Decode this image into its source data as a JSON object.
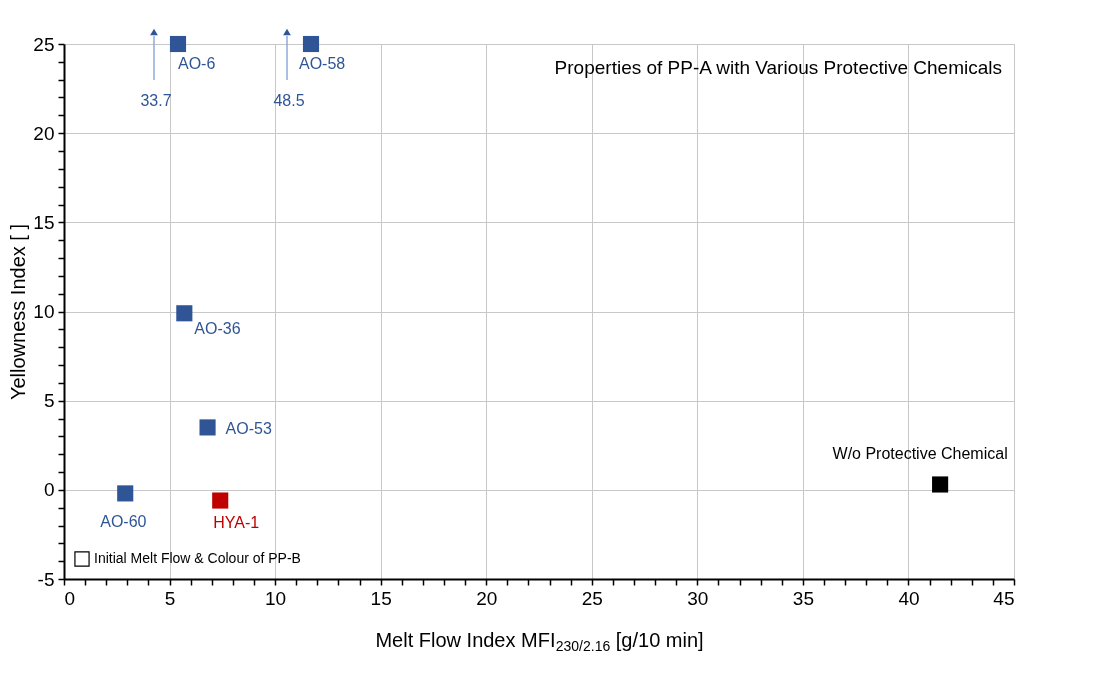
{
  "chart_data": {
    "type": "scatter",
    "title": "Properties of PP-A with Various Protective Chemicals",
    "xlabel": "Melt Flow Index MFI$_{230/2.16}$ [g/10 min]",
    "ylabel": "Yellowness Index [  ]",
    "series": [
      {
        "color": "#2f5597",
        "x": [
          5.4,
          11.7,
          5.7,
          6.8,
          2.9
        ],
        "values": [
          25,
          25,
          9.9,
          3.5,
          -0.2
        ],
        "value_labels": [
          "AO-6",
          "AO-58",
          "AO-36",
          "AO-53",
          "AO-60"
        ]
      },
      {
        "color": "#c00000",
        "x": [
          7.4
        ],
        "values": [
          -0.6
        ],
        "value_labels": [
          "HYA-1"
        ]
      },
      {
        "color": "#000000",
        "x": [
          41.5
        ],
        "values": [
          0.3
        ],
        "value_labels": [
          "W/o Protective Chemical"
        ]
      },
      {
        "name": "Initial Melt Flow & Colour of PP-B",
        "color": "#000000",
        "marker": "square_open"
      }
    ],
    "annotations": [
      "33.7",
      "48.5"
    ],
    "xlim": [
      0,
      45
    ],
    "ylim": [
      -5,
      25
    ],
    "xticks": [
      0,
      {
        "value": 1,
        "label": null
      },
      {
        "value": 2,
        "label": null
      },
      {
        "value": 3,
        "label": null
      },
      {
        "value": 4,
        "label": null
      },
      5,
      {
        "value": 6,
        "label": null
      },
      {
        "value": 7,
        "label": null
      },
      {
        "value": 8,
        "label": null
      },
      {
        "value": 9,
        "label": null
      },
      10,
      {
        "value": 11,
        "label": null
      },
      {
        "value": 12,
        "label": null
      },
      {
        "value": 13,
        "label": null
      },
      {
        "value": 14,
        "label": null
      },
      15,
      {
        "value": 16,
        "label": null
      },
      {
        "value": 17,
        "label": null
      },
      {
        "value": 18,
        "label": null
      },
      {
        "value": 19,
        "label": null
      },
      20,
      {
        "value": 21,
        "label": null
      },
      {
        "value": 22,
        "label": null
      },
      {
        "value": 23,
        "label": null
      },
      {
        "value": 24,
        "label": null
      },
      25,
      {
        "value": 26,
        "label": null
      },
      {
        "value": 27,
        "label": null
      },
      {
        "value": 28,
        "label": null
      },
      {
        "value": 29,
        "label": null
      },
      30,
      {
        "value": 31,
        "label": null
      },
      {
        "value": 32,
        "label": null
      },
      {
        "value": 33,
        "label": null
      },
      {
        "value": 34,
        "label": null
      },
      35,
      {
        "value": 36,
        "label": null
      },
      {
        "value": 37,
        "label": null
      },
      {
        "value": 38,
        "label": null
      },
      {
        "value": 39,
        "label": null
      },
      40,
      {
        "value": 41,
        "label": null
      },
      {
        "value": 42,
        "label": null
      },
      {
        "value": 43,
        "label": null
      },
      {
        "value": 44,
        "label": null
      },
      45
    ],
    "yticks": [
      -5,
      {
        "value": -4,
        "label": null
      },
      {
        "value": -3,
        "label": null
      },
      {
        "value": -2,
        "label": null
      },
      {
        "value": -1,
        "label": null
      },
      0,
      {
        "value": 1,
        "label": null
      },
      {
        "value": 2,
        "label": null
      },
      {
        "value": 3,
        "label": null
      },
      {
        "value": 4,
        "label": null
      },
      5,
      {
        "value": 6,
        "label": null
      },
      {
        "value": 7,
        "label": null
      },
      {
        "value": 8,
        "label": null
      },
      {
        "value": 9,
        "label": null
      },
      10,
      {
        "value": 11,
        "label": null
      },
      {
        "value": 12,
        "label": null
      },
      {
        "value": 13,
        "label": null
      },
      {
        "value": 14,
        "label": null
      },
      15,
      {
        "value": 16,
        "label": null
      },
      {
        "value": 17,
        "label": null
      },
      {
        "value": 18,
        "label": null
      },
      {
        "value": 19,
        "label": null
      },
      20,
      {
        "value": 21,
        "label": null
      },
      {
        "value": 22,
        "label": null
      },
      {
        "value": 23,
        "label": null
      },
      {
        "value": 24,
        "label": null
      },
      25
    ],
    "grid": true,
    "legend": "bottom left",
    "marker": "square"
  }
}
